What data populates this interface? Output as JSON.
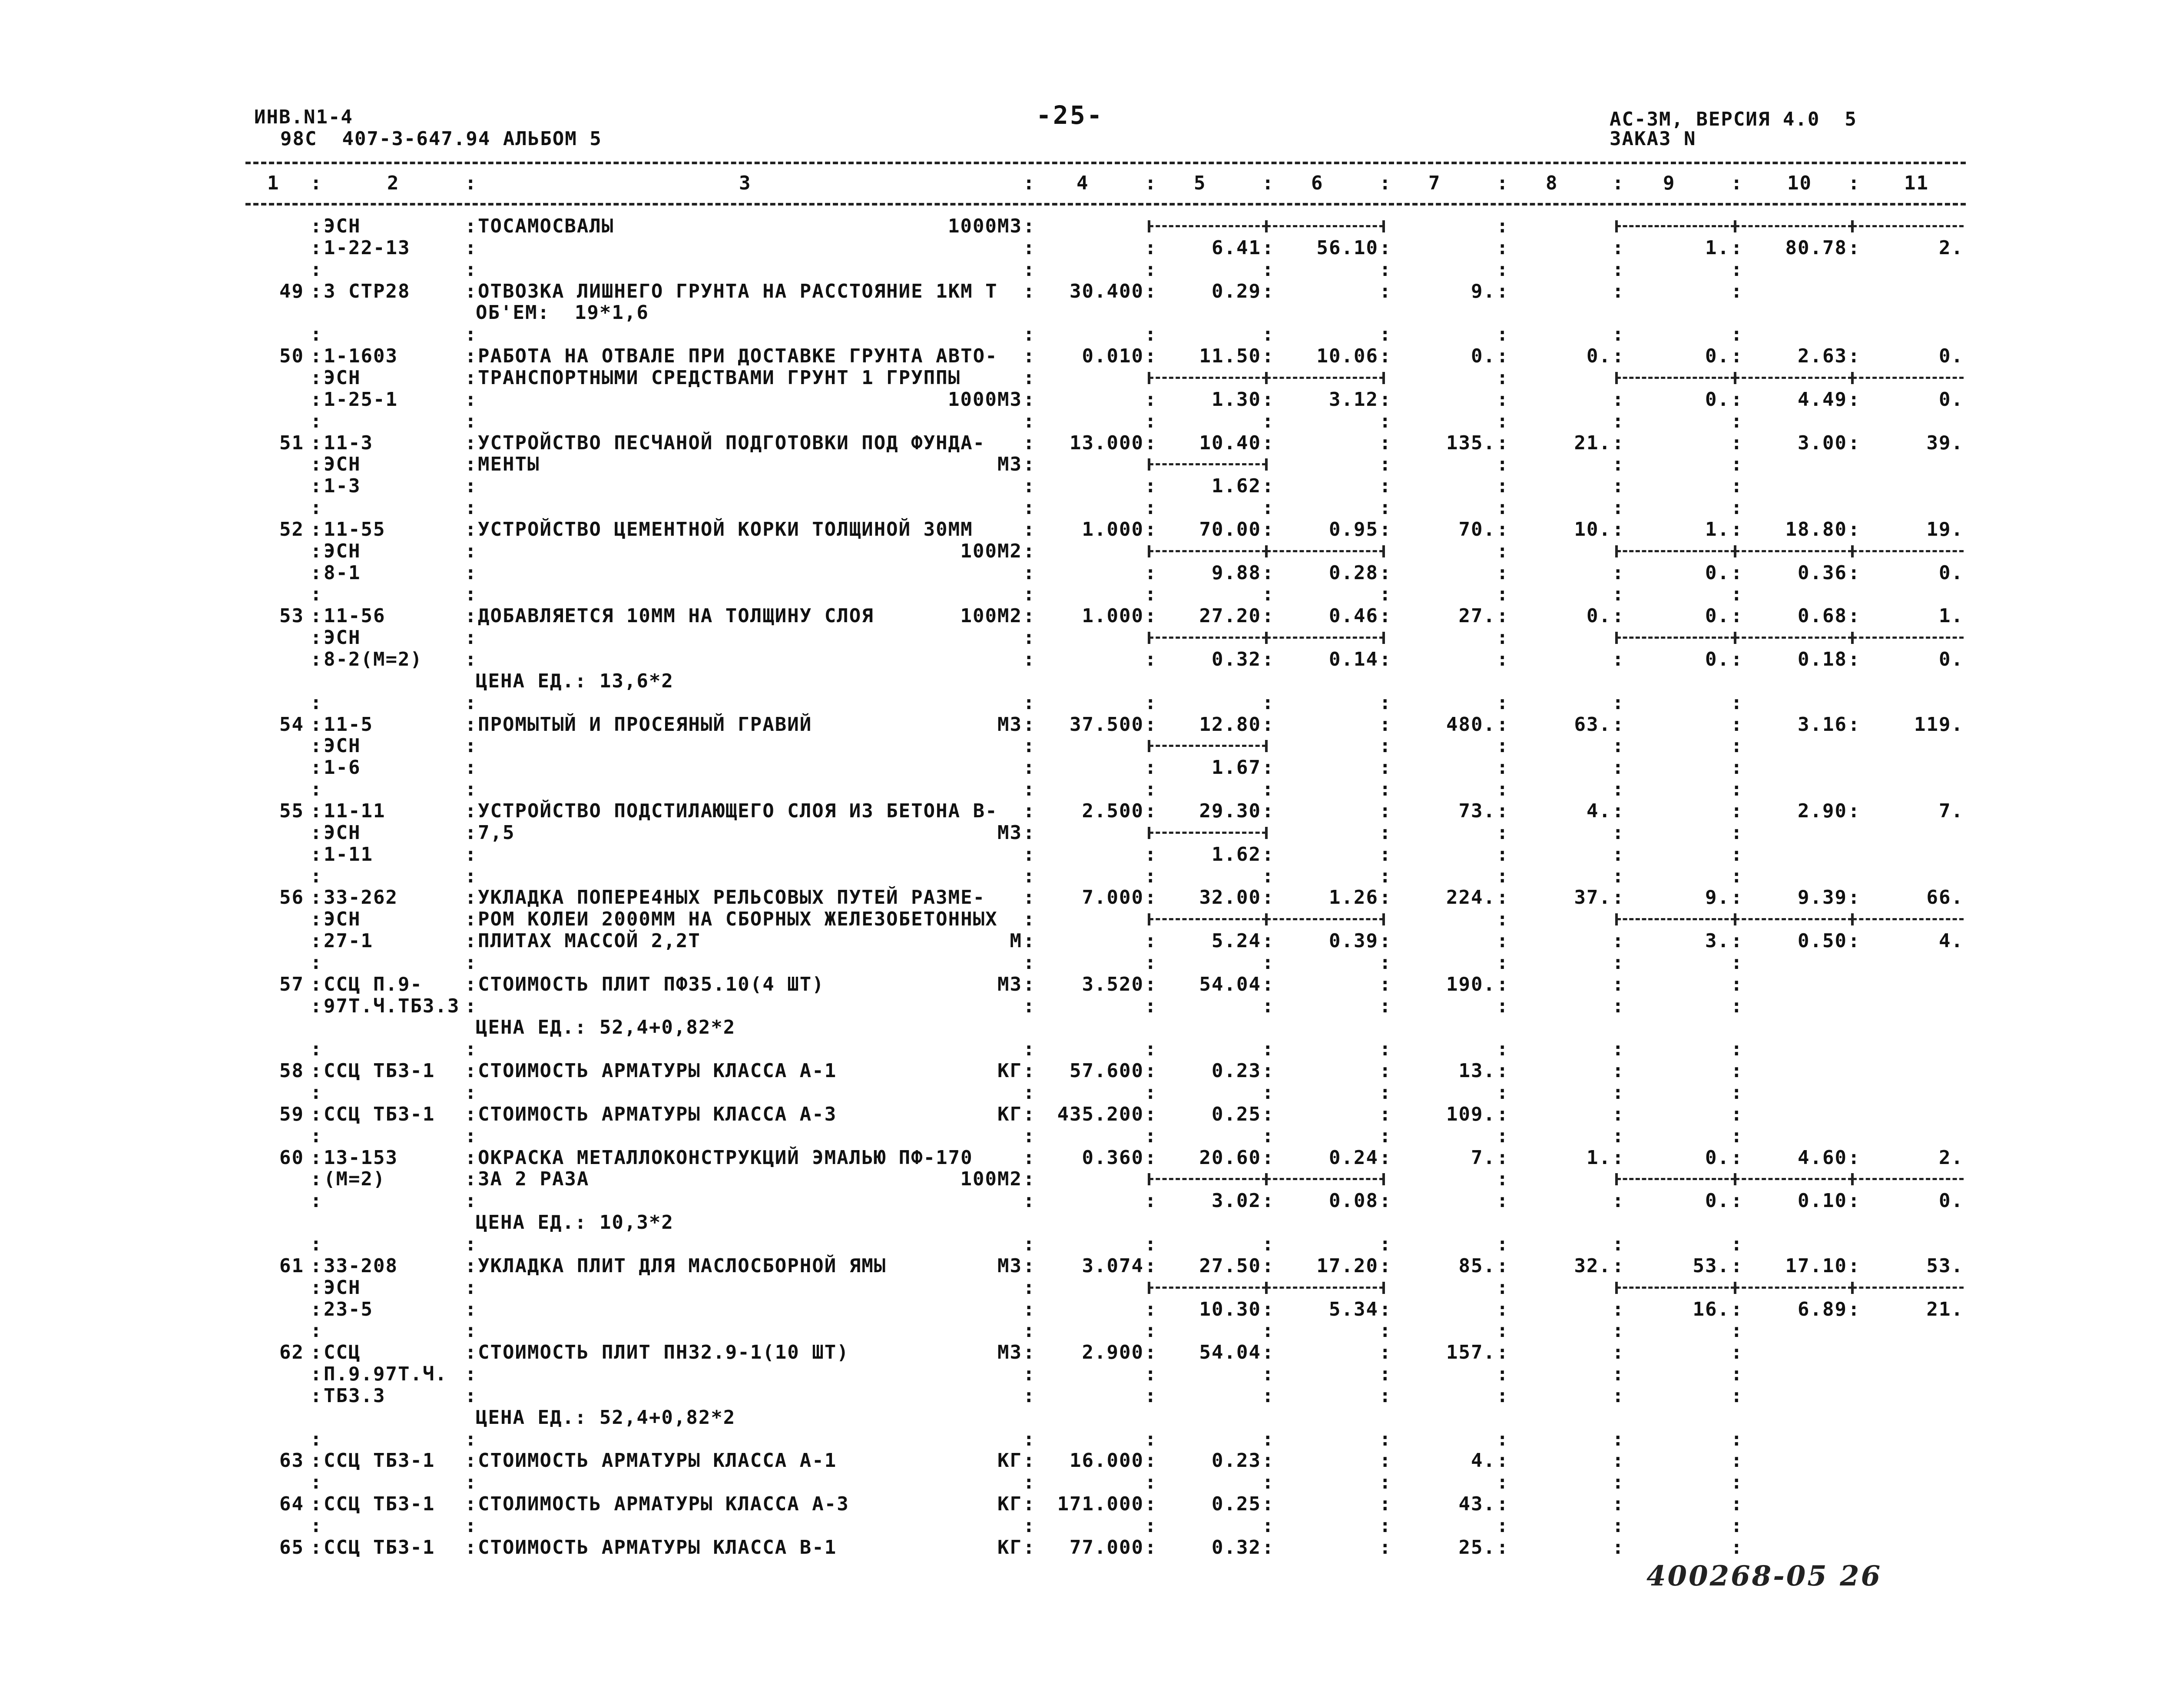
{
  "header": {
    "inv": "ИНВ.N1-4",
    "doc": "98С  407-3-647.94 АЛЬБОМ 5",
    "page": "-25-",
    "version": "АС-3М, ВЕРСИЯ 4.0  5",
    "order": "ЗАКАЗ N"
  },
  "columns": [
    "1",
    "2",
    "3",
    "4",
    "5",
    "6",
    "7",
    "8",
    "9",
    "10",
    "11"
  ],
  "lines": [
    {
      "code": "ЭСН",
      "desc": "ТОСАМОСВАЛЫ",
      "unit": "1000М3",
      "c": [
        "",
        "",
        "",
        "",
        "",
        "",
        "",
        ""
      ],
      "dash": [
        5,
        6,
        9,
        10,
        11
      ]
    },
    {
      "code": "1-22-13",
      "c": [
        "",
        "6.41",
        "56.10",
        "",
        "",
        "1.",
        "80.78",
        "2."
      ]
    },
    {
      "c": [
        "",
        "",
        "",
        "",
        "",
        "",
        "",
        ""
      ]
    },
    {
      "n": "49",
      "code": "3 СТР28",
      "desc": "ОТВОЗКА ЛИШНЕГО ГРУНТА НА РАССТОЯНИЕ 1КМ Т",
      "c": [
        "30.400",
        "0.29",
        "",
        "9.",
        "",
        "",
        "",
        ""
      ]
    },
    {
      "note": "ОБ'ЕМ:  19*1,6",
      "sep": false
    },
    {
      "c": [
        "",
        "",
        "",
        "",
        "",
        "",
        "",
        ""
      ]
    },
    {
      "n": "50",
      "code": "1-1603",
      "desc": "РАБОТА НА ОТВАЛЕ ПРИ ДОСТАВКЕ ГРУНТА АВТО-",
      "c": [
        "0.010",
        "11.50",
        "10.06",
        "0.",
        "0.",
        "0.",
        "2.63",
        "0."
      ]
    },
    {
      "code": "ЭСН",
      "desc": "ТРАНСПОРТНЫМИ СРЕДСТВАМИ ГРУНТ 1 ГРУППЫ",
      "dash": [
        5,
        6,
        9,
        10,
        11
      ]
    },
    {
      "code": "1-25-1",
      "unit": "1000М3",
      "c": [
        "",
        "1.30",
        "3.12",
        "",
        "",
        "0.",
        "4.49",
        "0."
      ]
    },
    {
      "c": [
        "",
        "",
        "",
        "",
        "",
        "",
        "",
        ""
      ]
    },
    {
      "n": "51",
      "code": "11-3",
      "desc": "УСТРОЙСТВО ПЕСЧАНОЙ ПОДГОТОВКИ ПОД ФУНДА-",
      "c": [
        "13.000",
        "10.40",
        "",
        "135.",
        "21.",
        "",
        "3.00",
        "39."
      ]
    },
    {
      "code": "ЭСН",
      "desc": "МЕНТЫ",
      "unit": "М3",
      "dash": [
        5
      ]
    },
    {
      "code": "1-3",
      "c": [
        "",
        "1.62",
        "",
        "",
        "",
        "",
        "",
        ""
      ]
    },
    {
      "c": [
        "",
        "",
        "",
        "",
        "",
        "",
        "",
        ""
      ]
    },
    {
      "n": "52",
      "code": "11-55",
      "desc": "УСТРОЙСТВО ЦЕМЕНТНОЙ КОРКИ ТОЛЩИНОЙ 30ММ",
      "c": [
        "1.000",
        "70.00",
        "0.95",
        "70.",
        "10.",
        "1.",
        "18.80",
        "19."
      ]
    },
    {
      "code": "ЭСН",
      "unit": "100М2",
      "dash": [
        5,
        6,
        9,
        10,
        11
      ]
    },
    {
      "code": "8-1",
      "c": [
        "",
        "9.88",
        "0.28",
        "",
        "",
        "0.",
        "0.36",
        "0."
      ]
    },
    {
      "c": [
        "",
        "",
        "",
        "",
        "",
        "",
        "",
        ""
      ]
    },
    {
      "n": "53",
      "code": "11-56",
      "desc": "ДОБАВЛЯЕТСЯ 10ММ НА ТОЛЩИНУ СЛОЯ",
      "unit": "100М2",
      "c": [
        "1.000",
        "27.20",
        "0.46",
        "27.",
        "0.",
        "0.",
        "0.68",
        "1."
      ]
    },
    {
      "code": "ЭСН",
      "dash": [
        5,
        6,
        9,
        10,
        11
      ]
    },
    {
      "code": "8-2(М=2)",
      "c": [
        "",
        "0.32",
        "0.14",
        "",
        "",
        "0.",
        "0.18",
        "0."
      ]
    },
    {
      "note": "ЦЕНА ЕД.: 13,6*2",
      "sep": false
    },
    {
      "c": [
        "",
        "",
        "",
        "",
        "",
        "",
        "",
        ""
      ]
    },
    {
      "n": "54",
      "code": "11-5",
      "desc": "ПРОМЫТЫЙ И ПРОСЕЯНЫЙ ГРАВИЙ",
      "unit": "М3",
      "c": [
        "37.500",
        "12.80",
        "",
        "480.",
        "63.",
        "",
        "3.16",
        "119."
      ]
    },
    {
      "code": "ЭСН",
      "dash": [
        5
      ]
    },
    {
      "code": "1-6",
      "c": [
        "",
        "1.67",
        "",
        "",
        "",
        "",
        "",
        ""
      ]
    },
    {
      "c": [
        "",
        "",
        "",
        "",
        "",
        "",
        "",
        ""
      ]
    },
    {
      "n": "55",
      "code": "11-11",
      "desc": "УСТРОЙСТВО ПОДСТИЛАЮЩЕГО СЛОЯ ИЗ БЕТОНА В-",
      "c": [
        "2.500",
        "29.30",
        "",
        "73.",
        "4.",
        "",
        "2.90",
        "7."
      ]
    },
    {
      "code": "ЭСН",
      "desc": "7,5",
      "unit": "М3",
      "dash": [
        5
      ]
    },
    {
      "code": "1-11",
      "c": [
        "",
        "1.62",
        "",
        "",
        "",
        "",
        "",
        ""
      ]
    },
    {
      "c": [
        "",
        "",
        "",
        "",
        "",
        "",
        "",
        ""
      ]
    },
    {
      "n": "56",
      "code": "33-262",
      "desc": "УКЛАДКА ПОПЕРЕ4НЫХ РЕЛЬСОВЫХ ПУТЕЙ РАЗМЕ-",
      "c": [
        "7.000",
        "32.00",
        "1.26",
        "224.",
        "37.",
        "9.",
        "9.39",
        "66."
      ]
    },
    {
      "code": "ЭСН",
      "desc": "РОМ КОЛЕИ 2000ММ НА СБОРНЫХ ЖЕЛЕЗОБЕТОННЫХ",
      "dash": [
        5,
        6,
        9,
        10,
        11
      ]
    },
    {
      "code": "27-1",
      "desc": "ПЛИТАХ МАССОЙ 2,2Т",
      "unit": "М",
      "c": [
        "",
        "5.24",
        "0.39",
        "",
        "",
        "3.",
        "0.50",
        "4."
      ]
    },
    {
      "c": [
        "",
        "",
        "",
        "",
        "",
        "",
        "",
        ""
      ]
    },
    {
      "n": "57",
      "code": "ССЦ П.9-",
      "desc": "СТОИМОСТЬ ПЛИТ ПФ35.10(4 ШТ)",
      "unit": "М3",
      "c": [
        "3.520",
        "54.04",
        "",
        "190.",
        "",
        "",
        "",
        ""
      ]
    },
    {
      "code": "97Т.Ч.ТБ3.3"
    },
    {
      "note": "ЦЕНА ЕД.: 52,4+0,82*2",
      "sep": false
    },
    {
      "c": [
        "",
        "",
        "",
        "",
        "",
        "",
        "",
        ""
      ]
    },
    {
      "n": "58",
      "code": "ССЦ ТБ3-1",
      "desc": "СТОИМОСТЬ АРМАТУРЫ КЛАССА А-1",
      "unit": "КГ",
      "c": [
        "57.600",
        "0.23",
        "",
        "13.",
        "",
        "",
        "",
        ""
      ]
    },
    {
      "c": [
        "",
        "",
        "",
        "",
        "",
        "",
        "",
        ""
      ]
    },
    {
      "n": "59",
      "code": "ССЦ ТБ3-1",
      "desc": "СТОИМОСТЬ АРМАТУРЫ КЛАССА А-3",
      "unit": "КГ",
      "c": [
        "435.200",
        "0.25",
        "",
        "109.",
        "",
        "",
        "",
        ""
      ]
    },
    {
      "c": [
        "",
        "",
        "",
        "",
        "",
        "",
        "",
        ""
      ]
    },
    {
      "n": "60",
      "code": "13-153",
      "desc": "ОКРАСКА МЕТАЛЛОКОНСТРУКЦИЙ ЭМАЛЬЮ ПФ-170",
      "c": [
        "0.360",
        "20.60",
        "0.24",
        "7.",
        "1.",
        "0.",
        "4.60",
        "2."
      ]
    },
    {
      "code": "(М=2)",
      "desc": "ЗА 2 РАЗА",
      "unit": "100М2",
      "dash": [
        5,
        6,
        9,
        10,
        11
      ]
    },
    {
      "c": [
        "",
        "3.02",
        "0.08",
        "",
        "",
        "0.",
        "0.10",
        "0."
      ]
    },
    {
      "note": "ЦЕНА ЕД.: 10,3*2",
      "sep": false
    },
    {
      "c": [
        "",
        "",
        "",
        "",
        "",
        "",
        "",
        ""
      ]
    },
    {
      "n": "61",
      "code": "33-208",
      "desc": "УКЛАДКА ПЛИТ ДЛЯ МАСЛОСБОРНОЙ ЯМЫ",
      "unit": "М3",
      "c": [
        "3.074",
        "27.50",
        "17.20",
        "85.",
        "32.",
        "53.",
        "17.10",
        "53."
      ]
    },
    {
      "code": "ЭСН",
      "dash": [
        5,
        6,
        9,
        10,
        11
      ]
    },
    {
      "code": "23-5",
      "c": [
        "",
        "10.30",
        "5.34",
        "",
        "",
        "16.",
        "6.89",
        "21."
      ]
    },
    {
      "c": [
        "",
        "",
        "",
        "",
        "",
        "",
        "",
        ""
      ]
    },
    {
      "n": "62",
      "code": "ССЦ",
      "desc": "СТОИМОСТЬ ПЛИТ ПН32.9-1(10 ШТ)",
      "unit": "М3",
      "c": [
        "2.900",
        "54.04",
        "",
        "157.",
        "",
        "",
        "",
        ""
      ]
    },
    {
      "code": "П.9.97Т.Ч."
    },
    {
      "code": "ТБ3.3"
    },
    {
      "note": "ЦЕНА ЕД.: 52,4+0,82*2",
      "sep": false
    },
    {
      "c": [
        "",
        "",
        "",
        "",
        "",
        "",
        "",
        ""
      ]
    },
    {
      "n": "63",
      "code": "ССЦ ТБ3-1",
      "desc": "СТОИМОСТЬ АРМАТУРЫ КЛАССА А-1",
      "unit": "КГ",
      "c": [
        "16.000",
        "0.23",
        "",
        "4.",
        "",
        "",
        "",
        ""
      ]
    },
    {
      "c": [
        "",
        "",
        "",
        "",
        "",
        "",
        "",
        ""
      ]
    },
    {
      "n": "64",
      "code": "ССЦ ТБ3-1",
      "desc": "СТОЛИМОСТЬ АРМАТУРЫ КЛАССА А-3",
      "unit": "КГ",
      "c": [
        "171.000",
        "0.25",
        "",
        "43.",
        "",
        "",
        "",
        ""
      ]
    },
    {
      "c": [
        "",
        "",
        "",
        "",
        "",
        "",
        "",
        ""
      ]
    },
    {
      "n": "65",
      "code": "ССЦ ТБ3-1",
      "desc": "СТОИМОСТЬ АРМАТУРЫ КЛАССА В-1",
      "unit": "КГ",
      "c": [
        "77.000",
        "0.32",
        "",
        "25.",
        "",
        "",
        "",
        ""
      ]
    }
  ],
  "handwritten_number": "400268-05  26"
}
